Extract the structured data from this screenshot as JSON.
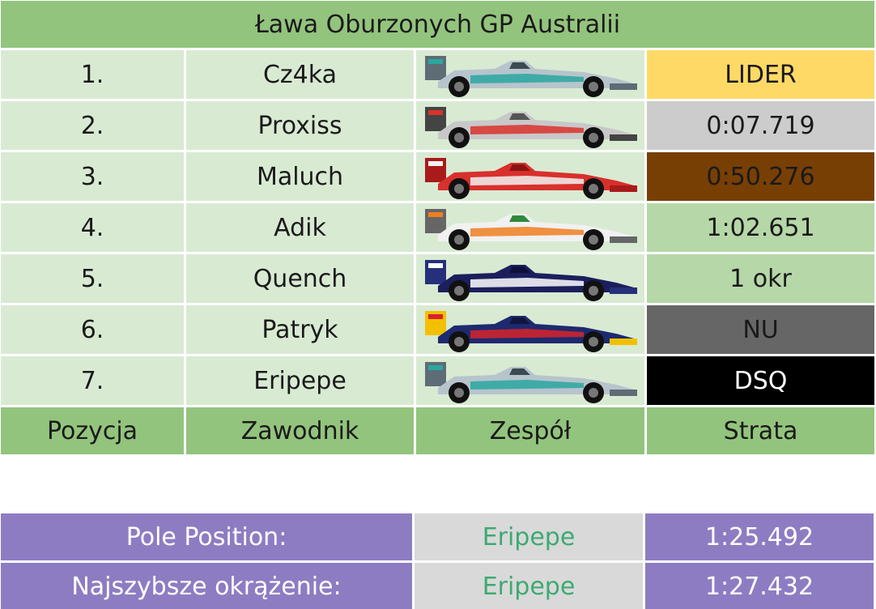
{
  "title": "Ława Oburzonych GP Australii",
  "rows": [
    {
      "pos": "1.",
      "driver": "Cz4ka",
      "team_icon": "mercedes-car-icon",
      "gap": "LIDER",
      "gap_bg": "#ffd966",
      "gap_color": "#1a1a1a"
    },
    {
      "pos": "2.",
      "driver": "Proxiss",
      "team_icon": "mclaren-car-icon",
      "gap": "0:07.719",
      "gap_bg": "#cccccc",
      "gap_color": "#1a1a1a"
    },
    {
      "pos": "3.",
      "driver": "Maluch",
      "team_icon": "ferrari-car-icon",
      "gap": "0:50.276",
      "gap_bg": "#783f04",
      "gap_color": "#1a1a1a"
    },
    {
      "pos": "4.",
      "driver": "Adik",
      "team_icon": "force-india-car-icon",
      "gap": "1:02.651",
      "gap_bg": "#b6d7a8",
      "gap_color": "#1a1a1a"
    },
    {
      "pos": "5.",
      "driver": "Quench",
      "team_icon": "williams-car-icon",
      "gap": "1 okr",
      "gap_bg": "#b6d7a8",
      "gap_color": "#1a1a1a"
    },
    {
      "pos": "6.",
      "driver": "Patryk",
      "team_icon": "red-bull-car-icon",
      "gap": "NU",
      "gap_bg": "#666666",
      "gap_color": "#1a1a1a"
    },
    {
      "pos": "7.",
      "driver": "Eripepe",
      "team_icon": "mercedes-car-icon",
      "gap": "DSQ",
      "gap_bg": "#000000",
      "gap_color": "#ffffff"
    }
  ],
  "headers": {
    "position": "Pozycja",
    "driver": "Zawodnik",
    "team": "Zespół",
    "gap": "Strata"
  },
  "summary": [
    {
      "label": "Pole Position:",
      "driver": "Eripepe",
      "time": "1:25.492"
    },
    {
      "label": "Najszybsze okrążenie:",
      "driver": "Eripepe",
      "time": "1:27.432"
    }
  ],
  "colors": {
    "header_green": "#93c47d",
    "cell_light_green": "#d9ead3",
    "summary_purple": "#8e7cc3",
    "summary_gray": "#d9d9d9",
    "summary_driver_text": "#3daa72"
  }
}
